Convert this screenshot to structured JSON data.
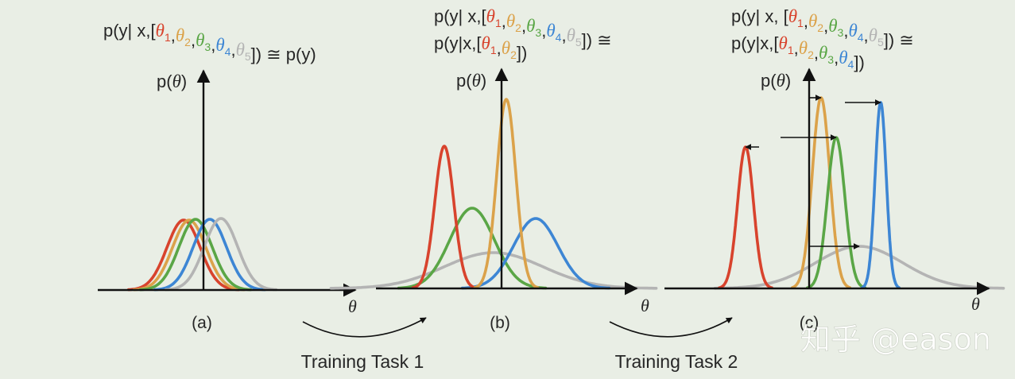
{
  "colors": {
    "theta1": "#d8432d",
    "theta2": "#dba24a",
    "theta3": "#5aa646",
    "theta4": "#3d86d4",
    "theta5": "#b4b4b4",
    "text": "#262626",
    "axis": "#111111"
  },
  "y_axis_label": "p(θ)",
  "x_axis_label": "θ",
  "panels": [
    {
      "id": "a",
      "caption": "(a)",
      "formula_lines": [
        [
          {
            "t": "p(y| x,["
          },
          {
            "t": "θ",
            "c": "theta1",
            "sub": "1"
          },
          {
            "t": ","
          },
          {
            "t": "θ",
            "c": "theta2",
            "sub": "2"
          },
          {
            "t": ","
          },
          {
            "t": "θ",
            "c": "theta3",
            "sub": "3"
          },
          {
            "t": ","
          },
          {
            "t": "θ",
            "c": "theta4",
            "sub": "4"
          },
          {
            "t": ","
          },
          {
            "t": "θ",
            "c": "theta5",
            "sub": "5"
          },
          {
            "t": "]) ≅ p(y)"
          }
        ]
      ],
      "curves": [
        {
          "color": "theta1",
          "mu": -25,
          "sigma": 21,
          "h": 88
        },
        {
          "color": "theta2",
          "mu": -18,
          "sigma": 21,
          "h": 88
        },
        {
          "color": "theta3",
          "mu": -10,
          "sigma": 21,
          "h": 89
        },
        {
          "color": "theta4",
          "mu": 8,
          "sigma": 21,
          "h": 89
        },
        {
          "color": "theta5",
          "mu": 22,
          "sigma": 21,
          "h": 90
        }
      ],
      "arrows": []
    },
    {
      "id": "b",
      "caption": "(b)",
      "formula_lines": [
        [
          {
            "t": "p(y| x,["
          },
          {
            "t": "θ",
            "c": "theta1",
            "sub": "1"
          },
          {
            "t": ","
          },
          {
            "t": "θ",
            "c": "theta2",
            "sub": "2"
          },
          {
            "t": ","
          },
          {
            "t": "θ",
            "c": "theta3",
            "sub": "3"
          },
          {
            "t": ","
          },
          {
            "t": "θ",
            "c": "theta4",
            "sub": "4"
          },
          {
            "t": ","
          },
          {
            "t": "θ",
            "c": "theta5",
            "sub": "5"
          },
          {
            "t": "]) ≅"
          }
        ],
        [
          {
            "t": "p(y|x,["
          },
          {
            "t": "θ",
            "c": "theta1",
            "sub": "1"
          },
          {
            "t": ","
          },
          {
            "t": "θ",
            "c": "theta2",
            "sub": "2"
          },
          {
            "t": "])"
          }
        ]
      ],
      "curves": [
        {
          "color": "theta5",
          "mu": -10,
          "sigma": 62,
          "h": 45
        },
        {
          "color": "theta3",
          "mu": -37,
          "sigma": 28,
          "h": 101
        },
        {
          "color": "theta4",
          "mu": 43,
          "sigma": 28,
          "h": 88
        },
        {
          "color": "theta1",
          "mu": -72,
          "sigma": 12,
          "h": 179
        },
        {
          "color": "theta2",
          "mu": 6,
          "sigma": 12,
          "h": 238
        }
      ],
      "arrows": []
    },
    {
      "id": "c",
      "caption": "(c)",
      "formula_lines": [
        [
          {
            "t": "p(y| x, ["
          },
          {
            "t": "θ",
            "c": "theta1",
            "sub": "1"
          },
          {
            "t": ","
          },
          {
            "t": "θ",
            "c": "theta2",
            "sub": "2"
          },
          {
            "t": ","
          },
          {
            "t": "θ",
            "c": "theta3",
            "sub": "3"
          },
          {
            "t": ","
          },
          {
            "t": "θ",
            "c": "theta4",
            "sub": "4"
          },
          {
            "t": ","
          },
          {
            "t": "θ",
            "c": "theta5",
            "sub": "5"
          },
          {
            "t": "]) ≅"
          }
        ],
        [
          {
            "t": "p(y|x,["
          },
          {
            "t": "θ",
            "c": "theta1",
            "sub": "1"
          },
          {
            "t": ","
          },
          {
            "t": "θ",
            "c": "theta2",
            "sub": "2"
          },
          {
            "t": ","
          },
          {
            "t": "θ",
            "c": "theta3",
            "sub": "3"
          },
          {
            "t": ","
          },
          {
            "t": "θ",
            "c": "theta4",
            "sub": "4"
          },
          {
            "t": "])"
          }
        ]
      ],
      "curves": [
        {
          "color": "theta5",
          "mu": 63,
          "sigma": 55,
          "h": 53
        },
        {
          "color": "theta1",
          "mu": -80,
          "sigma": 10,
          "h": 178
        },
        {
          "color": "theta2",
          "mu": 15,
          "sigma": 11,
          "h": 240
        },
        {
          "color": "theta3",
          "mu": 34,
          "sigma": 11,
          "h": 190
        },
        {
          "color": "theta4",
          "mu": 90,
          "sigma": 7,
          "h": 234
        }
      ],
      "arrows": [
        {
          "from": -63,
          "to": -80,
          "level": 178
        },
        {
          "from": 0,
          "to": 15,
          "level": 240
        },
        {
          "from": -36,
          "to": 34,
          "level": 190
        },
        {
          "from": 45,
          "to": 90,
          "level": 234
        },
        {
          "from": 0,
          "to": 63,
          "level": 53
        }
      ]
    }
  ],
  "transitions": [
    {
      "label": "Training Task 1"
    },
    {
      "label": "Training Task 2"
    }
  ],
  "watermark": "知乎 @eason"
}
